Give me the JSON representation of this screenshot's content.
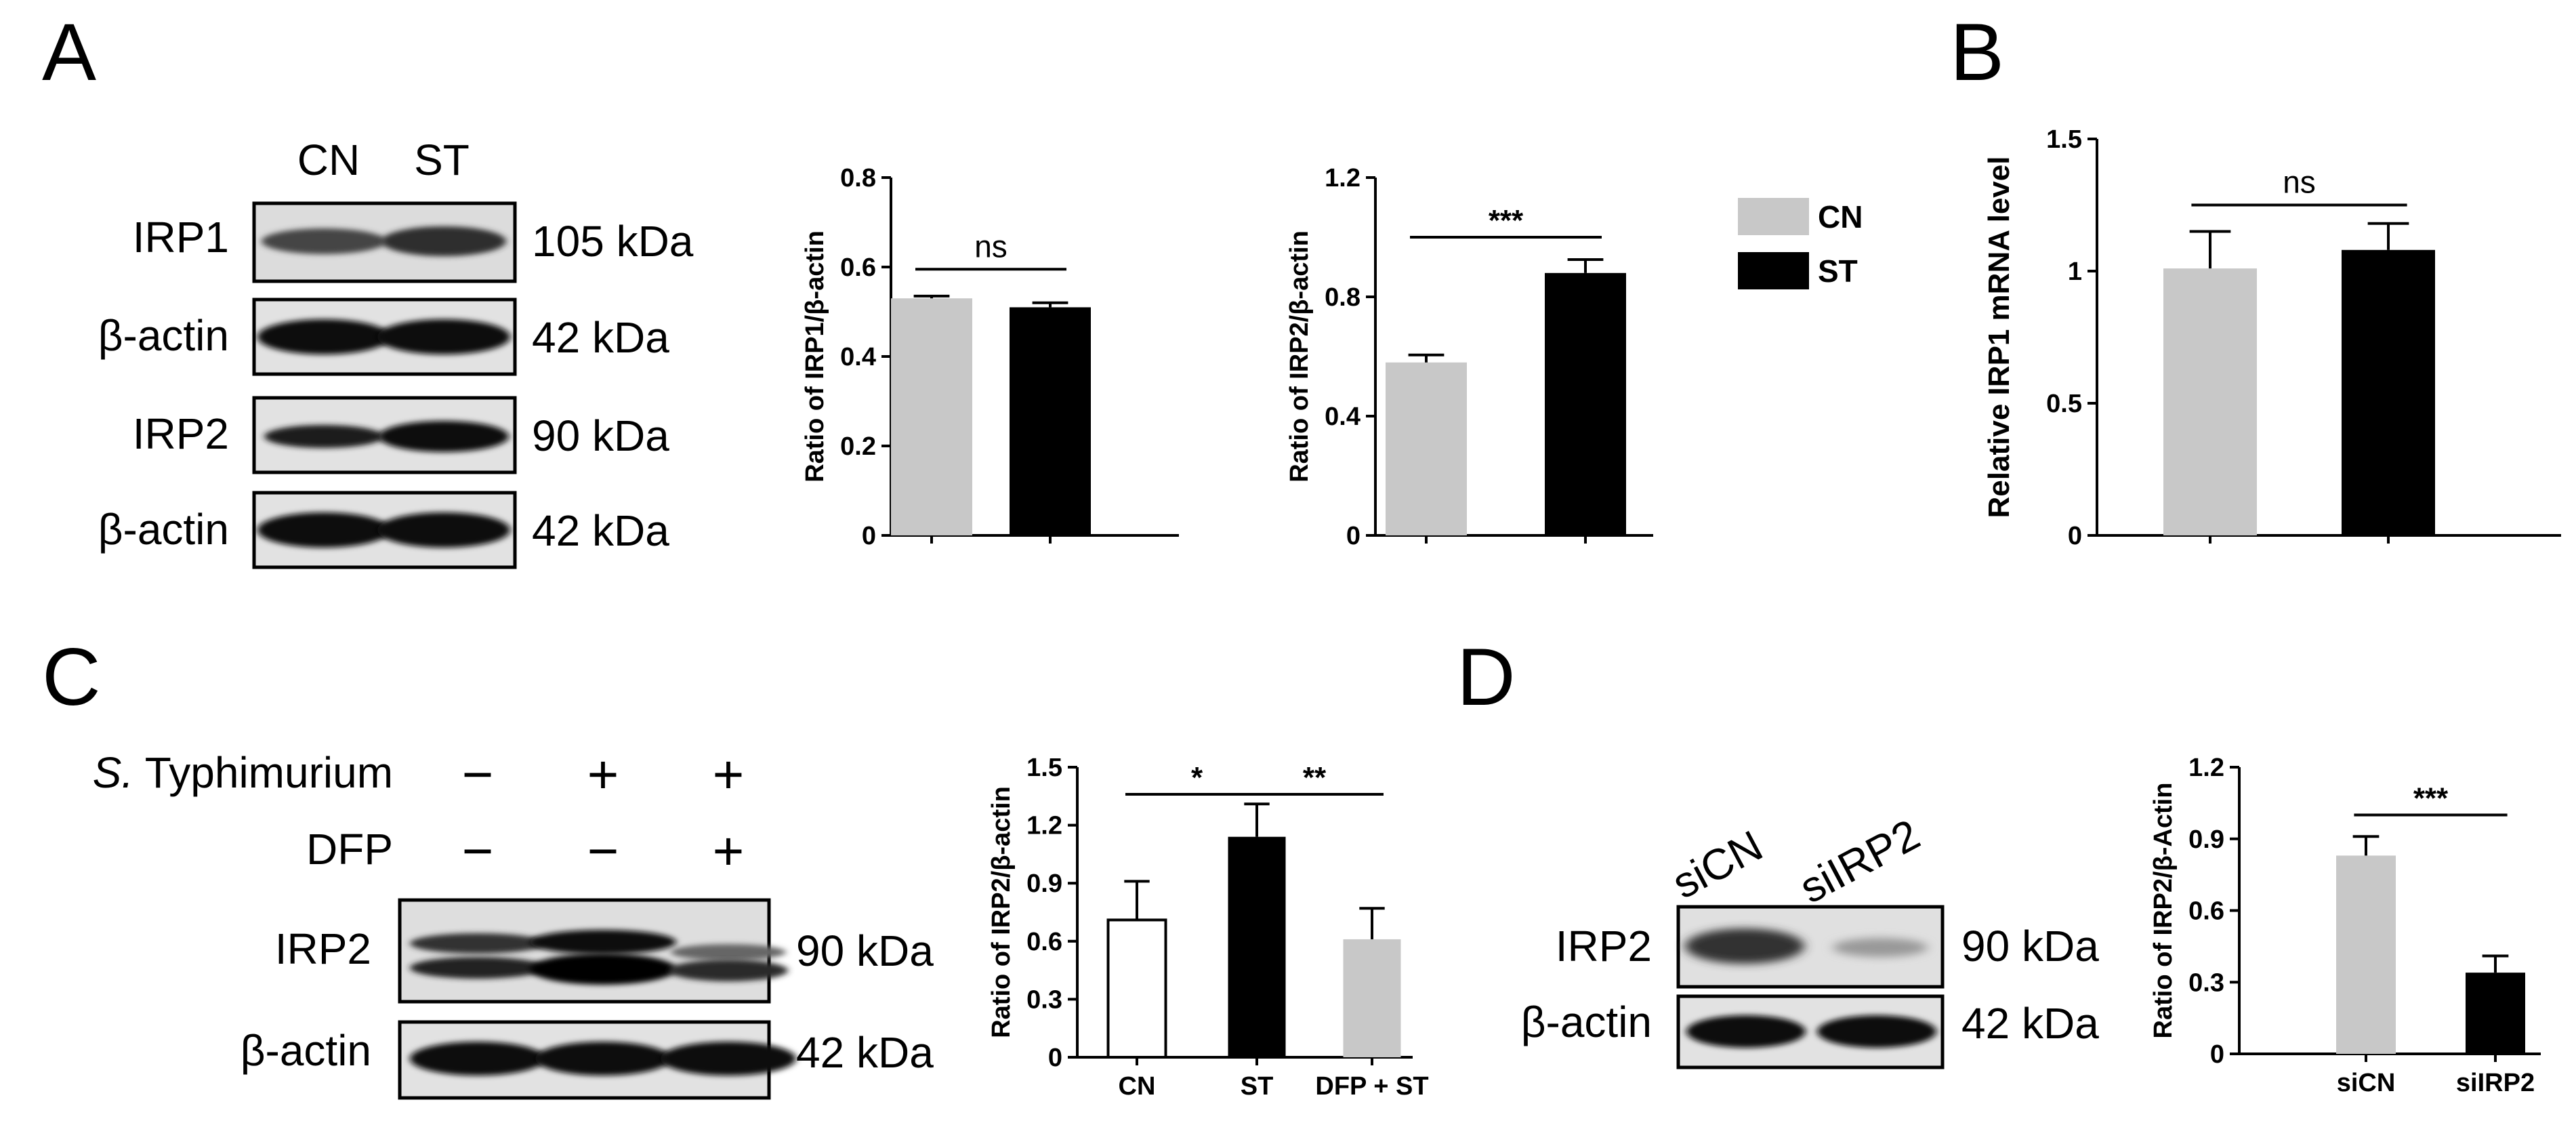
{
  "panels": {
    "A": {
      "letter": "A",
      "lanes": [
        "CN",
        "ST"
      ],
      "blots": [
        {
          "protein": "IRP1",
          "kda": "105 kDa"
        },
        {
          "protein": "β-actin",
          "kda": "42 kDa"
        },
        {
          "protein": "IRP2",
          "kda": "90 kDa"
        },
        {
          "protein": "β-actin",
          "kda": "42 kDa"
        }
      ]
    },
    "B": {
      "letter": "B"
    },
    "C": {
      "letter": "C",
      "treatments": [
        {
          "label_italic": "S.",
          "label_rest": " Typhimurium",
          "signs": [
            "−",
            "+",
            "+"
          ]
        },
        {
          "label_italic": "",
          "label_rest": "DFP",
          "signs": [
            "−",
            "−",
            "+"
          ]
        }
      ],
      "blots": [
        {
          "protein": "IRP2",
          "kda": "90 kDa"
        },
        {
          "protein": "β-actin",
          "kda": "42 kDa"
        }
      ]
    },
    "D": {
      "letter": "D",
      "lanes": [
        "siCN",
        "siIRP2"
      ],
      "blots": [
        {
          "protein": "IRP2",
          "kda": "90 kDa"
        },
        {
          "protein": "β-actin",
          "kda": "42 kDa"
        }
      ]
    }
  },
  "legend": [
    {
      "label": "CN",
      "color": "#c8c8c8"
    },
    {
      "label": "ST",
      "color": "#000000"
    }
  ],
  "chart_data": [
    {
      "id": "A1",
      "type": "bar",
      "categories": [
        "CN",
        "ST"
      ],
      "show_categories": false,
      "values": [
        0.53,
        0.51
      ],
      "errors": [
        0.005,
        0.01
      ],
      "colors": [
        "#c8c8c8",
        "#000000"
      ],
      "ylabel": "Ratio of IRP1/β-actin",
      "ylim": [
        0,
        0.8
      ],
      "yticks": [
        "0",
        "0.2",
        "0.4",
        "0.6",
        "0.8"
      ],
      "significance": [
        {
          "from": 0,
          "to": 1,
          "label": "ns",
          "y": 0.595
        }
      ]
    },
    {
      "id": "A2",
      "type": "bar",
      "categories": [
        "CN",
        "ST"
      ],
      "show_categories": false,
      "values": [
        0.58,
        0.88
      ],
      "errors": [
        0.025,
        0.045
      ],
      "colors": [
        "#c8c8c8",
        "#000000"
      ],
      "ylabel": "Ratio of IRP2/β-actin",
      "ylim": [
        0,
        1.2
      ],
      "yticks": [
        "0",
        "0.4",
        "0.8",
        "1.2"
      ],
      "significance": [
        {
          "from": 0,
          "to": 1,
          "label": "***",
          "y": 1.0
        }
      ]
    },
    {
      "id": "B",
      "type": "bar",
      "categories": [
        "CN",
        "ST"
      ],
      "show_categories": false,
      "values": [
        1.01,
        1.08
      ],
      "errors": [
        0.14,
        0.1
      ],
      "colors": [
        "#c8c8c8",
        "#000000"
      ],
      "ylabel": "Relative IRP1 mRNA level",
      "ylim": [
        0,
        1.5
      ],
      "yticks": [
        "0",
        "0.5",
        "1",
        "1.5"
      ],
      "significance": [
        {
          "from": 0,
          "to": 1,
          "label": "ns",
          "y": 1.25
        }
      ]
    },
    {
      "id": "C",
      "type": "bar",
      "categories": [
        "CN",
        "ST",
        "DFP + ST"
      ],
      "show_categories": true,
      "values": [
        0.71,
        1.14,
        0.61
      ],
      "errors": [
        0.2,
        0.17,
        0.16
      ],
      "colors": [
        "#ffffff",
        "#000000",
        "#c8c8c8"
      ],
      "ylabel": "Ratio of IRP2/β-actin",
      "ylim": [
        0,
        1.5
      ],
      "yticks": [
        "0",
        "0.3",
        "0.6",
        "0.9",
        "1.2",
        "1.5"
      ],
      "significance": [
        {
          "from": 0,
          "to": 1,
          "label": "*",
          "y": 1.36
        },
        {
          "from": 1,
          "to": 2,
          "label": "**",
          "y": 1.36
        }
      ]
    },
    {
      "id": "D",
      "type": "bar",
      "categories": [
        "siCN",
        "siIRP2"
      ],
      "show_categories": true,
      "values": [
        0.83,
        0.34
      ],
      "errors": [
        0.08,
        0.07
      ],
      "colors": [
        "#c8c8c8",
        "#000000"
      ],
      "ylabel": "Ratio of IRP2/β-Actin",
      "ylim": [
        0,
        1.2
      ],
      "yticks": [
        "0",
        "0.3",
        "0.6",
        "0.9",
        "1.2"
      ],
      "significance": [
        {
          "from": 0,
          "to": 1,
          "label": "***",
          "y": 1.0
        }
      ]
    }
  ]
}
